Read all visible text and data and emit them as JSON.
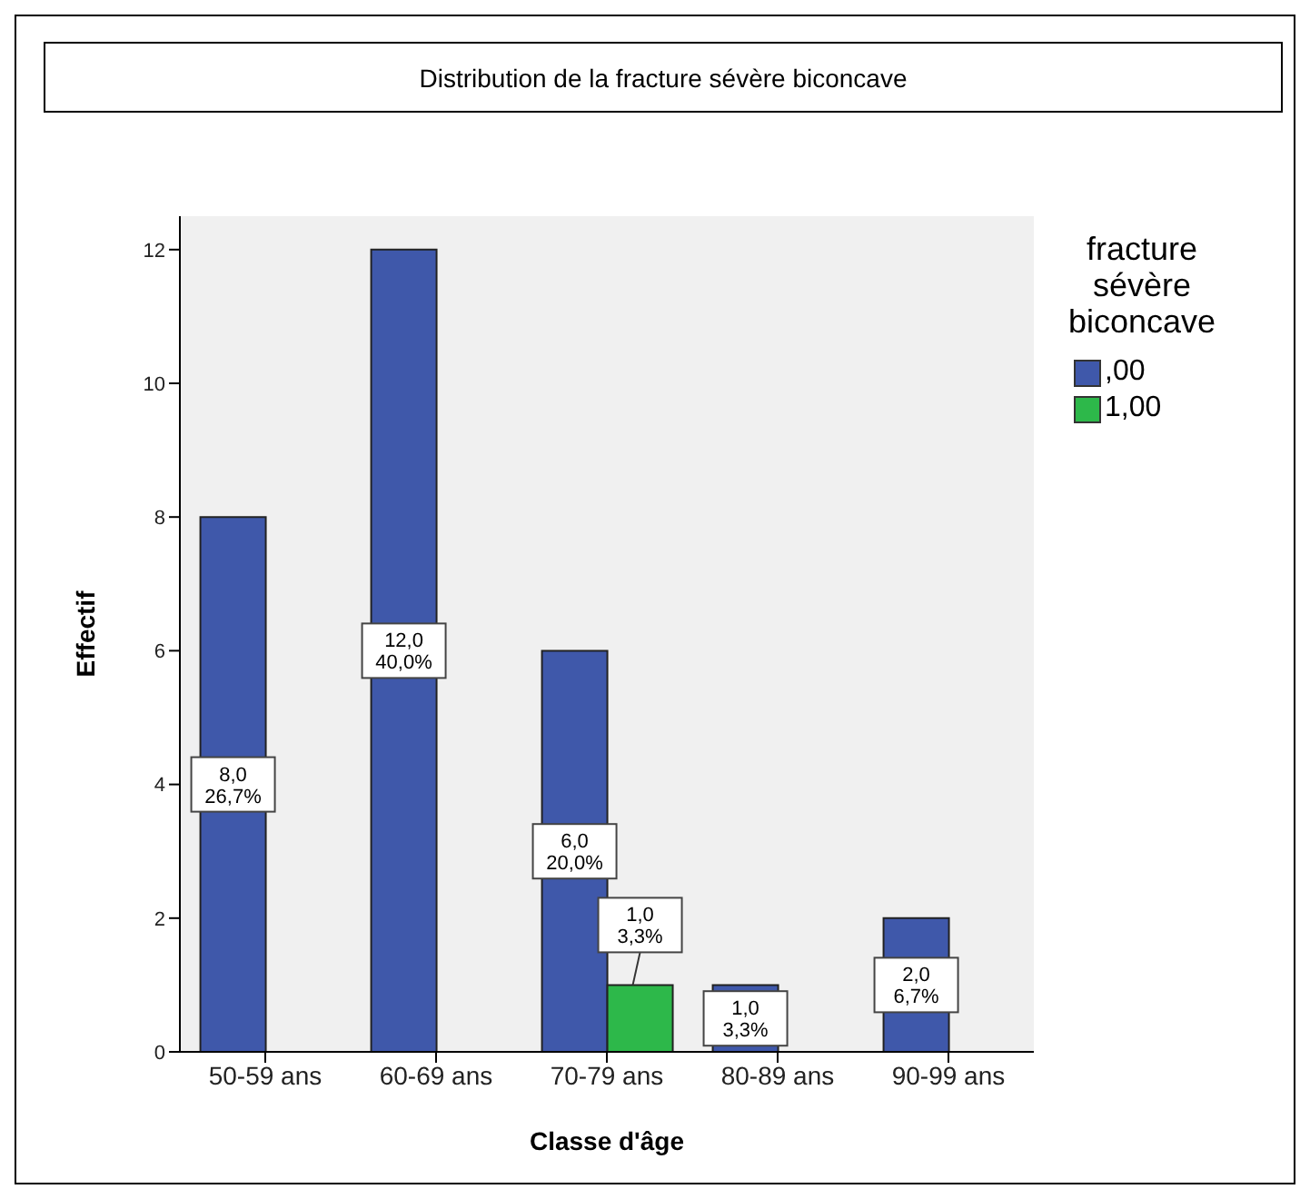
{
  "chart_data": {
    "type": "bar",
    "title": "Distribution de la fracture sévère biconcave",
    "xlabel": "Classe d'âge",
    "ylabel": "Effectif",
    "legend_title": "fracture sévère biconcave",
    "categories": [
      "50-59 ans",
      "60-69 ans",
      "70-79 ans",
      "80-89 ans",
      "90-99 ans"
    ],
    "series": [
      {
        "name": ",00",
        "color": "#3f58aa",
        "values": [
          8,
          12,
          6,
          1,
          2
        ],
        "value_labels": [
          "8,0\n26,7%",
          "12,0\n40,0%",
          "6,0\n20,0%",
          "1,0\n3,3%",
          "2,0\n6,7%"
        ]
      },
      {
        "name": "1,00",
        "color": "#2db84a",
        "values": [
          null,
          null,
          1,
          null,
          null
        ],
        "value_labels": [
          null,
          null,
          "1,0\n3,3%",
          null,
          null
        ]
      }
    ],
    "ylim": [
      0,
      12.5
    ],
    "yticks": [
      0,
      2,
      4,
      6,
      8,
      10,
      12
    ],
    "legend": "right"
  }
}
